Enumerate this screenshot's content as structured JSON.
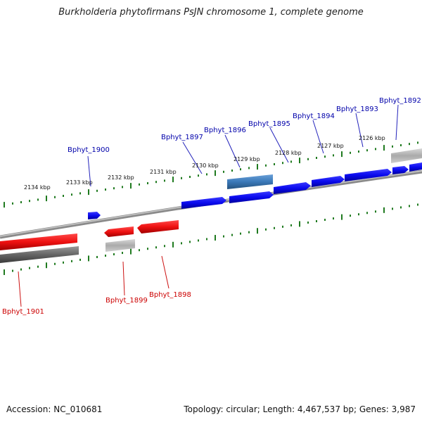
{
  "title": "Burkholderia phytofirmans PsJN chromosome 1, complete genome",
  "footer": {
    "accession": "Accession: NC_010681",
    "summary": "Topology: circular; Length: 4,467,537 bp; Genes: 3,987"
  },
  "colors": {
    "forward_gene": "#0a0aee",
    "reverse_gene": "#ee1111",
    "rna_forward": "#3a78b8",
    "pseudo": "#aaaaaa",
    "backbone": "#888888",
    "tick": "#1f7a1f",
    "forward_label": "#0000aa",
    "reverse_label": "#cc0000"
  },
  "scale_ticks": [
    "2134 kbp",
    "2133 kbp",
    "2132 kbp",
    "2131 kbp",
    "2130 kbp",
    "2129 kbp",
    "2128 kbp",
    "2127 kbp",
    "2126 kbp"
  ],
  "forward_genes": [
    "Bphyt_1900",
    "Bphyt_1897",
    "Bphyt_1896",
    "Bphyt_1895",
    "Bphyt_1894",
    "Bphyt_1893",
    "Bphyt_1892"
  ],
  "reverse_genes": [
    "Bphyt_1901",
    "Bphyt_1899",
    "Bphyt_1898"
  ]
}
